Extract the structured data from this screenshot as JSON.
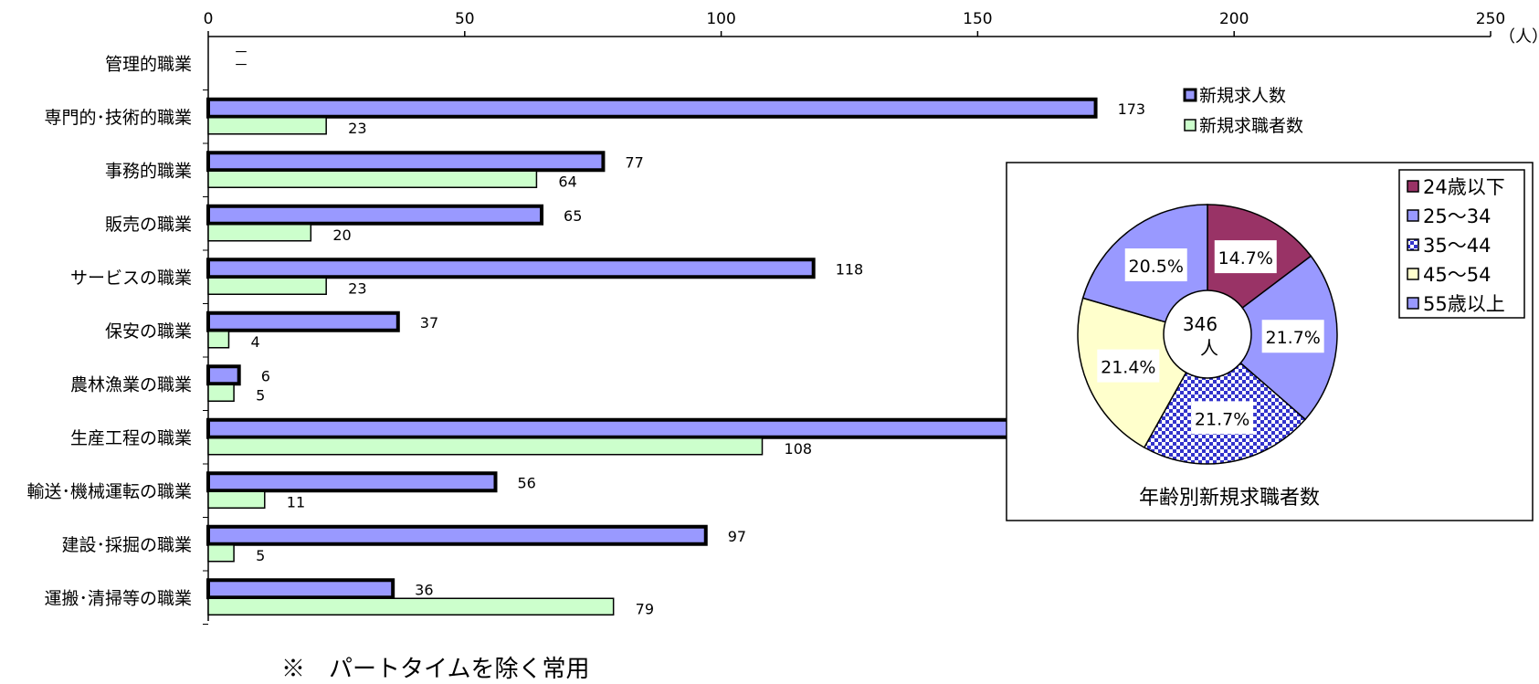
{
  "chart_data": [
    {
      "type": "bar",
      "orientation": "horizontal",
      "unit": "（人）",
      "xlim": [
        0,
        250
      ],
      "x_ticks": [
        "0",
        "50",
        "100",
        "150",
        "200",
        "250"
      ],
      "categories": [
        "管理的職業",
        "専門的･技術的職業",
        "事務的職業",
        "販売の職業",
        "サービスの職業",
        "保安の職業",
        "農林漁業の職業",
        "生産工程の職業",
        "輸送･機械運転の職業",
        "建設･採掘の職業",
        "運搬･清掃等の職業"
      ],
      "series": [
        {
          "name": "新規求人数",
          "color": "#9999ff",
          "values": [
            0,
            173,
            77,
            65,
            118,
            37,
            6,
            178,
            56,
            97,
            36
          ],
          "labels": [
            "－",
            "173",
            "77",
            "65",
            "118",
            "37",
            "6",
            "",
            "56",
            "97",
            "36"
          ]
        },
        {
          "name": "新規求職者数",
          "color": "#ccffcc",
          "values": [
            0,
            23,
            64,
            20,
            23,
            4,
            5,
            108,
            11,
            5,
            79
          ],
          "labels": [
            "－",
            "23",
            "64",
            "20",
            "23",
            "4",
            "5",
            "108",
            "11",
            "5",
            "79"
          ]
        }
      ],
      "legend_position": "top-right",
      "grid": false
    },
    {
      "type": "pie",
      "title": "年齢別新規求職者数",
      "center_label": [
        "346",
        "人"
      ],
      "slices": [
        {
          "name": "24歳以下",
          "value": 14.7,
          "label": "14.7%",
          "color": "#993366",
          "pattern": "solid"
        },
        {
          "name": "25～34",
          "value": 21.7,
          "label": "21.7%",
          "color": "#9999ff",
          "pattern": "solid"
        },
        {
          "name": "35～44",
          "value": 21.7,
          "label": "21.7%",
          "color": "#3333cc",
          "pattern": "checker"
        },
        {
          "name": "45～54",
          "value": 21.4,
          "label": "21.4%",
          "color": "#ffffcc",
          "pattern": "solid"
        },
        {
          "name": "55歳以上",
          "value": 20.5,
          "label": "20.5%",
          "color": "#9999ff",
          "pattern": "solid"
        }
      ],
      "legend_position": "right"
    }
  ],
  "footnote": "※　パートタイムを除く常用"
}
